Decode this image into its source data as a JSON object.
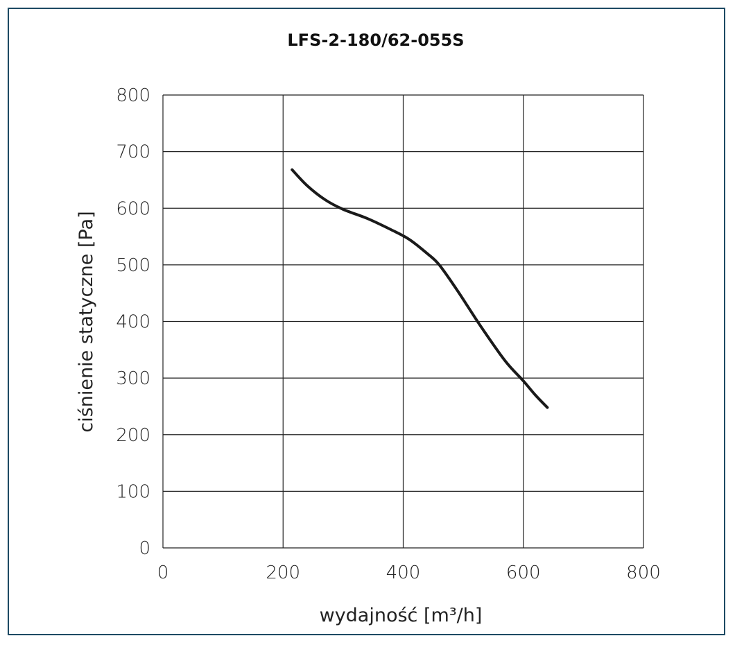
{
  "colors": {
    "frame": "#1d4a63",
    "grid": "#222222",
    "curve": "#1a1a1a",
    "background": "#ffffff"
  },
  "chart_data": {
    "type": "line",
    "title": "LFS-2-180/62-055S",
    "xlabel": "wydajność [m³/h]",
    "ylabel": "ciśnienie statyczne [Pa]",
    "xlim": [
      0,
      800
    ],
    "ylim": [
      0,
      800
    ],
    "xticks": [
      "0",
      "200",
      "400",
      "600",
      "800"
    ],
    "yticks": [
      "0",
      "100",
      "200",
      "300",
      "400",
      "500",
      "600",
      "700",
      "800"
    ],
    "grid": true,
    "series": [
      {
        "x": [
          215,
          240,
          270,
          300,
          340,
          380,
          410,
          440,
          460,
          490,
          530,
          570,
          600,
          620,
          640
        ],
        "y": [
          668,
          640,
          615,
          598,
          582,
          562,
          545,
          520,
          500,
          455,
          390,
          330,
          295,
          270,
          248
        ]
      }
    ]
  }
}
